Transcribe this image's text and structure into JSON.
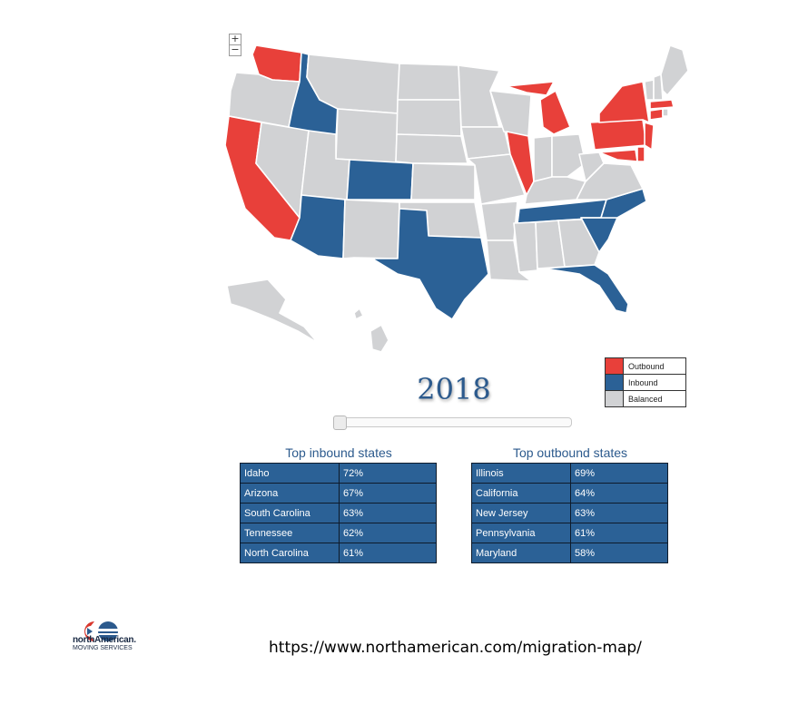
{
  "zoom": {
    "in_label": "+",
    "out_label": "−"
  },
  "colors": {
    "outbound": "#e8403a",
    "inbound": "#2b6196",
    "balanced": "#d1d2d4"
  },
  "legend": {
    "outbound": "Outbound",
    "inbound": "Inbound",
    "balanced": "Balanced"
  },
  "year": "2018",
  "slider": {
    "value": "2018",
    "position_fraction": 0
  },
  "map_states": {
    "WA": "outbound",
    "ID": "inbound",
    "CA": "outbound",
    "AZ": "inbound",
    "CO": "inbound",
    "TX": "inbound",
    "IL": "outbound",
    "MI": "outbound",
    "TN": "inbound",
    "NC": "inbound",
    "SC": "inbound",
    "FL": "inbound",
    "NY": "outbound",
    "PA": "outbound",
    "NJ": "outbound",
    "MD": "outbound",
    "DE": "outbound",
    "CT": "outbound",
    "MA": "outbound",
    "OR": "balanced",
    "NV": "balanced",
    "UT": "balanced",
    "MT": "balanced",
    "WY": "balanced",
    "NM": "balanced",
    "ND": "balanced",
    "SD": "balanced",
    "NE": "balanced",
    "KS": "balanced",
    "OK": "balanced",
    "MN": "balanced",
    "IA": "balanced",
    "MO": "balanced",
    "AR": "balanced",
    "LA": "balanced",
    "WI": "balanced",
    "IN": "balanced",
    "OH": "balanced",
    "KY": "balanced",
    "MS": "balanced",
    "AL": "balanced",
    "GA": "balanced",
    "WV": "balanced",
    "VA": "balanced",
    "VT": "balanced",
    "NH": "balanced",
    "ME": "balanced",
    "RI": "balanced",
    "AK": "balanced",
    "HI": "balanced"
  },
  "inbound": {
    "title": "Top inbound states",
    "rows": [
      {
        "state": "Idaho",
        "pct": "72%"
      },
      {
        "state": "Arizona",
        "pct": "67%"
      },
      {
        "state": "South Carolina",
        "pct": "63%"
      },
      {
        "state": "Tennessee",
        "pct": "62%"
      },
      {
        "state": "North Carolina",
        "pct": "61%"
      }
    ]
  },
  "outbound": {
    "title": "Top outbound states",
    "rows": [
      {
        "state": "Illinois",
        "pct": "69%"
      },
      {
        "state": "California",
        "pct": "64%"
      },
      {
        "state": "New Jersey",
        "pct": "63%"
      },
      {
        "state": "Pennsylvania",
        "pct": "61%"
      },
      {
        "state": "Maryland",
        "pct": "58%"
      }
    ]
  },
  "logo": {
    "brand": "northAmerican.",
    "tagline": "MOVING SERVICES"
  },
  "url": "https://www.northamerican.com/migration-map/"
}
